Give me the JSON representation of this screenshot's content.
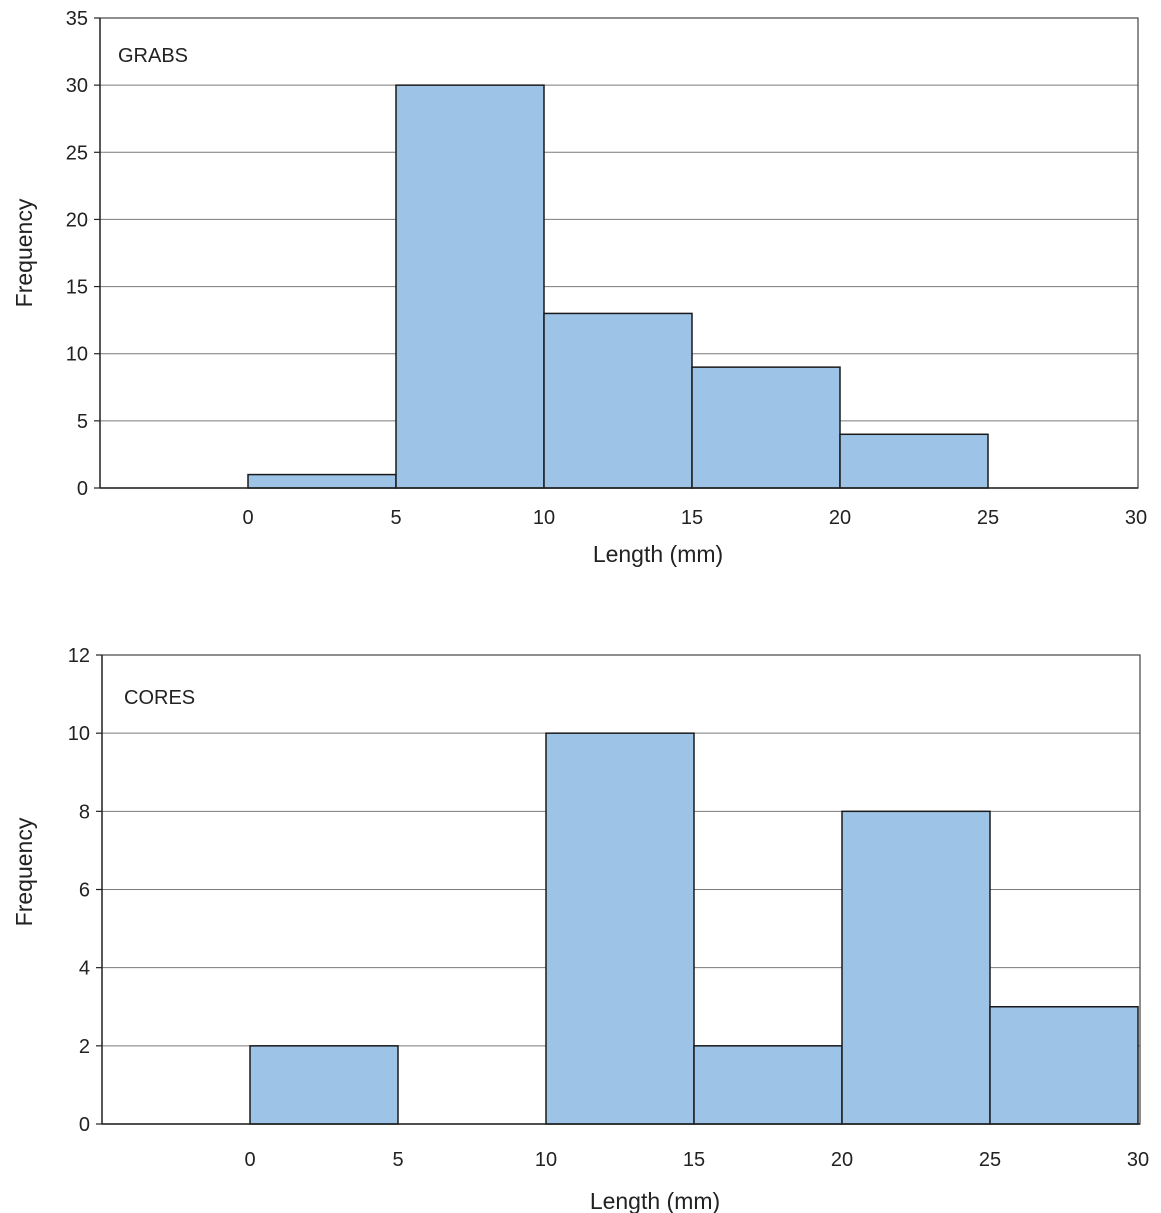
{
  "chart_data": [
    {
      "type": "bar",
      "label": "GRABS",
      "bins": [
        [
          0,
          5
        ],
        [
          5,
          10
        ],
        [
          10,
          15
        ],
        [
          15,
          20
        ],
        [
          20,
          25
        ]
      ],
      "values": [
        1,
        30,
        13,
        9,
        4
      ],
      "xlabel": "Length (mm)",
      "ylabel": "Frequency",
      "xlim": [
        0,
        30
      ],
      "ylim": [
        0,
        35
      ],
      "xticks": [
        0,
        5,
        10,
        15,
        20,
        25,
        30
      ],
      "yticks": [
        0,
        5,
        10,
        15,
        20,
        25,
        30,
        35
      ],
      "grid": true,
      "bar_color": "#9dc3e6"
    },
    {
      "type": "bar",
      "label": "CORES",
      "bins": [
        [
          0,
          5
        ],
        [
          10,
          15
        ],
        [
          15,
          20
        ],
        [
          20,
          25
        ],
        [
          25,
          30
        ]
      ],
      "values": [
        2,
        10,
        2,
        8,
        3
      ],
      "xlabel": "Length (mm)",
      "ylabel": "Frequency",
      "xlim": [
        0,
        30
      ],
      "ylim": [
        0,
        12
      ],
      "xticks": [
        0,
        5,
        10,
        15,
        20,
        25,
        30
      ],
      "yticks": [
        0,
        2,
        4,
        6,
        8,
        10,
        12
      ],
      "grid": true,
      "bar_color": "#9dc3e6"
    }
  ]
}
